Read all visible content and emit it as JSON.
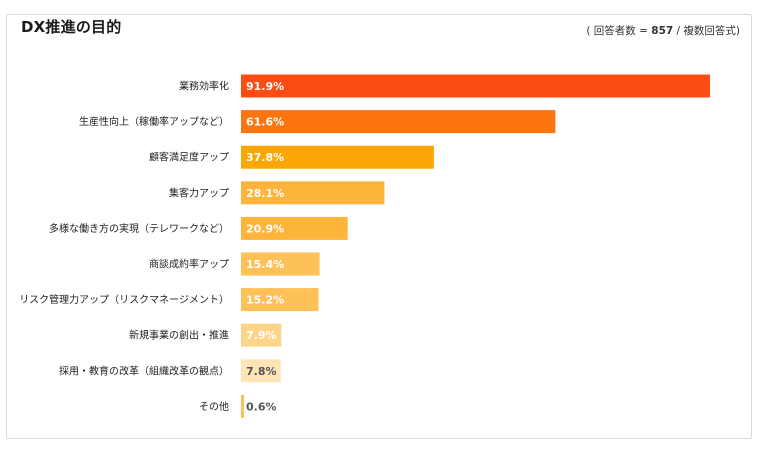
{
  "chart_data": {
    "type": "bar",
    "orientation": "horizontal",
    "title": "DX推進の目的",
    "note": {
      "prefix": "( 回答者数 = ",
      "n": "857",
      "suffix": " / 複数回答式)"
    },
    "categories": [
      "業務効率化",
      "生産性向上（稼働率アップなど）",
      "顧客満足度アップ",
      "集客力アップ",
      "多様な働き方の実現（テレワークなど）",
      "商談成約率アップ",
      "リスク管理力アップ（リスクマネージメント）",
      "新規事業の創出・推進",
      "採用・教育の改革（組織改革の観点）",
      "その他"
    ],
    "values": [
      91.9,
      61.6,
      37.8,
      28.1,
      20.9,
      15.4,
      15.2,
      7.9,
      7.8,
      0.6
    ],
    "value_labels": [
      "91.9%",
      "61.6%",
      "37.8%",
      "28.1%",
      "20.9%",
      "15.4%",
      "15.2%",
      "7.9%",
      "7.8%",
      "0.6%"
    ],
    "colors": [
      "#fc4c13",
      "#fd7510",
      "#fca506",
      "#fdb43a",
      "#fdb43a",
      "#fdc157",
      "#fdc157",
      "#fed38a",
      "#fee4b7",
      "#fdc157"
    ],
    "label_colors": [
      "#ffffff",
      "#ffffff",
      "#ffffff",
      "#ffffff",
      "#ffffff",
      "#ffffff",
      "#ffffff",
      "#ffffff",
      "#555555",
      "#555555"
    ],
    "xlim": [
      0,
      100
    ],
    "grid": false,
    "legend": "none"
  }
}
